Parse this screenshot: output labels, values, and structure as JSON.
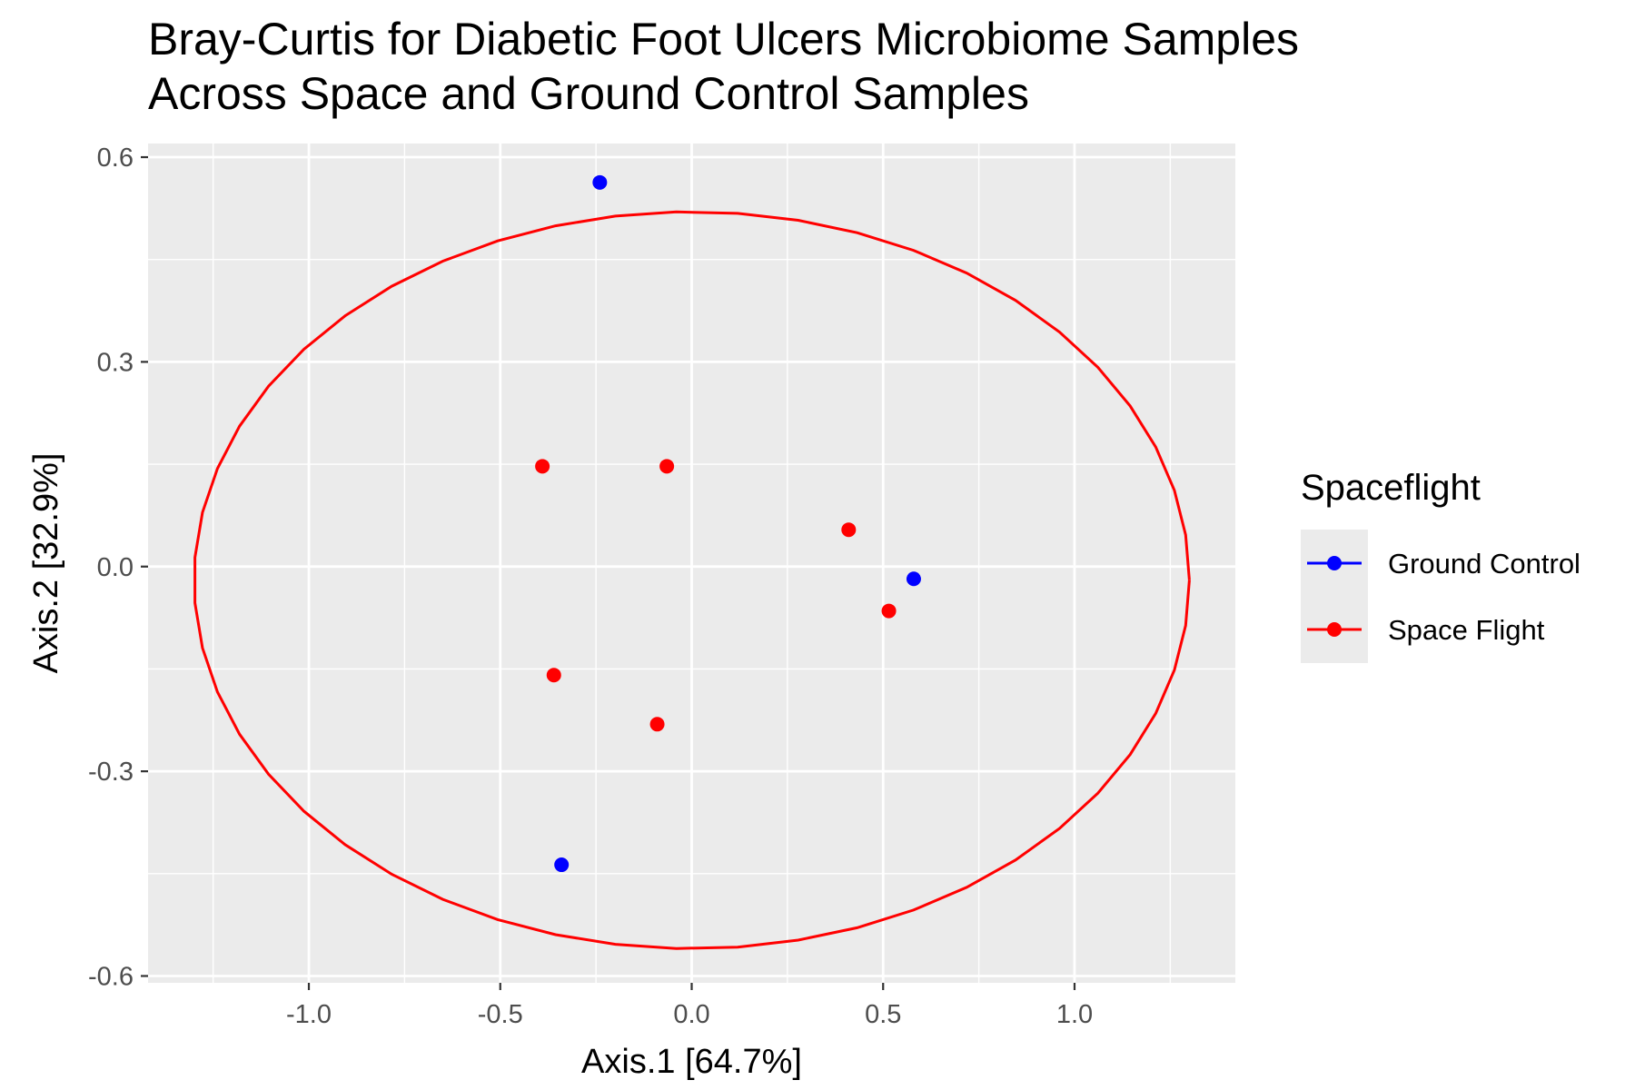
{
  "chart_data": {
    "type": "scatter",
    "title": "Bray-Curtis for Diabetic Foot Ulcers Microbiome Samples",
    "subtitle": "Across Space and Ground Control Samples",
    "xlabel": "Axis.1   [64.7%]",
    "ylabel": "Axis.2   [32.9%]",
    "xlim": [
      -1.42,
      1.42
    ],
    "ylim": [
      -0.61,
      0.62
    ],
    "x_ticks": [
      -1.0,
      -0.5,
      0.0,
      0.5,
      1.0
    ],
    "x_tick_labels": [
      "-1.0",
      "-0.5",
      "0.0",
      "0.5",
      "1.0"
    ],
    "y_ticks": [
      -0.6,
      -0.3,
      0.0,
      0.3,
      0.6
    ],
    "y_tick_labels": [
      "-0.6",
      "-0.3",
      "0.0",
      "0.3",
      "0.6"
    ],
    "grid": true,
    "legend": {
      "title": "Spaceflight",
      "position": "right"
    },
    "series": [
      {
        "name": "Ground Control",
        "color": "#0000ff",
        "points": [
          {
            "x": -0.24,
            "y": 0.563
          },
          {
            "x": 0.58,
            "y": -0.018
          },
          {
            "x": -0.34,
            "y": -0.437
          }
        ]
      },
      {
        "name": "Space Flight",
        "color": "#ff0000",
        "points": [
          {
            "x": -0.39,
            "y": 0.147
          },
          {
            "x": -0.065,
            "y": 0.147
          },
          {
            "x": 0.41,
            "y": 0.054
          },
          {
            "x": 0.515,
            "y": -0.065
          },
          {
            "x": -0.36,
            "y": -0.159
          },
          {
            "x": -0.09,
            "y": -0.231
          }
        ]
      }
    ],
    "ellipse": {
      "series": "Space Flight",
      "color": "#ff0000",
      "center": [
        0.0,
        -0.02
      ],
      "x_radius": 1.3,
      "y_radius": 0.54
    }
  }
}
